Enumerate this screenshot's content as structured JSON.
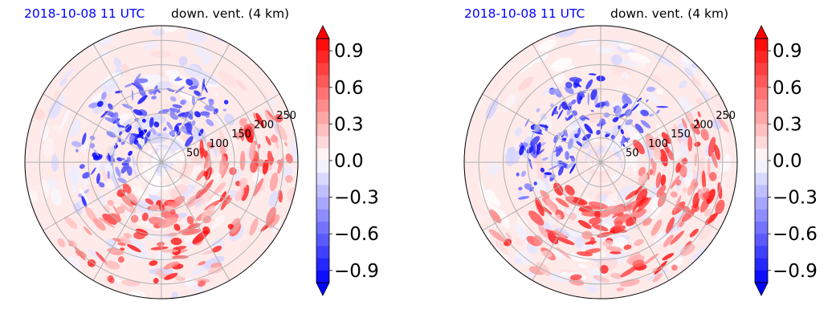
{
  "chart_data": [
    {
      "type": "heatmap",
      "projection": "polar",
      "title_left": "2018-10-08 11 UTC",
      "title_right": "down. vent. (4 km)",
      "title_left_color": "#0000ff",
      "radial_ticks": [
        "50",
        "100",
        "150",
        "200",
        "250"
      ],
      "radial_values": [
        50,
        100,
        150,
        200,
        250
      ],
      "rmax": 280,
      "colorbar": {
        "min": -1.0,
        "max": 1.0,
        "ticks": [
          -0.9,
          -0.6,
          -0.3,
          0.0,
          0.3,
          0.6,
          0.9
        ],
        "tick_labels": [
          "−0.9",
          "−0.6",
          "−0.3",
          "0.0",
          "0.3",
          "0.6",
          "0.9"
        ],
        "extend": "both",
        "colormap": "bwr"
      },
      "grid": true
    },
    {
      "type": "heatmap",
      "projection": "polar",
      "title_left": "2018-10-08 11 UTC",
      "title_right": "down. vent. (4 km)",
      "title_left_color": "#0000ff",
      "radial_ticks": [
        "50",
        "100",
        "150",
        "200",
        "250"
      ],
      "radial_values": [
        50,
        100,
        150,
        200,
        250
      ],
      "rmax": 280,
      "colorbar": {
        "min": -1.0,
        "max": 1.0,
        "ticks": [
          -0.9,
          -0.6,
          -0.3,
          0.0,
          0.3,
          0.6,
          0.9
        ],
        "tick_labels": [
          "−0.9",
          "−0.6",
          "−0.3",
          "0.0",
          "0.3",
          "0.6",
          "0.9"
        ],
        "extend": "both",
        "colormap": "bwr"
      },
      "grid": true
    }
  ]
}
